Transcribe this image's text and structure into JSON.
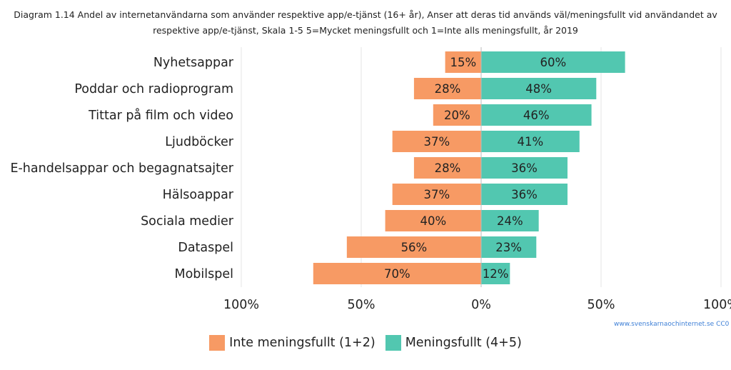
{
  "title_lines": [
    "Diagram 1.14 Andel av internetanvändarna som använder respektive app/e-tjänst (16+ år), Anser att deras tid används väl/meningsfullt vid användandet av",
    "respektive app/e-tjänst, Skala 1-5 5=Mycket meningsfullt och 1=Inte alls meningsfullt, år 2019"
  ],
  "source": "www.svenskarnaochinternet.se CC0",
  "colors": {
    "negative": "#f79a64",
    "positive": "#52c7b0",
    "grid": "#e6e6e6"
  },
  "chart_data": {
    "type": "bar",
    "orientation": "horizontal-diverging",
    "categories": [
      "Nyhetsappar",
      "Poddar och radioprogram",
      "Tittar på film och video",
      "Ljudböcker",
      "E-handelsappar och begagnatsajter",
      "Hälsoappar",
      "Sociala medier",
      "Dataspel",
      "Mobilspel"
    ],
    "series": [
      {
        "name": "Inte meningsfullt (1+2)",
        "values": [
          15,
          28,
          20,
          37,
          28,
          37,
          40,
          56,
          70
        ],
        "labels": [
          "15%",
          "28%",
          "20%",
          "37%",
          "28%",
          "37%",
          "40%",
          "56%",
          "70%"
        ]
      },
      {
        "name": "Meningsfullt (4+5)",
        "values": [
          60,
          48,
          46,
          41,
          36,
          36,
          24,
          23,
          12
        ],
        "labels": [
          "60%",
          "48%",
          "46%",
          "41%",
          "36%",
          "36%",
          "24%",
          "23%",
          "12%"
        ]
      }
    ],
    "x_ticks": [
      {
        "value": -100,
        "label": "100%"
      },
      {
        "value": -50,
        "label": "50%"
      },
      {
        "value": 0,
        "label": "0%"
      },
      {
        "value": 50,
        "label": "50%"
      },
      {
        "value": 100,
        "label": "100%"
      }
    ],
    "xlim": [
      -100,
      100
    ],
    "grid": true,
    "legend_position": "bottom"
  }
}
